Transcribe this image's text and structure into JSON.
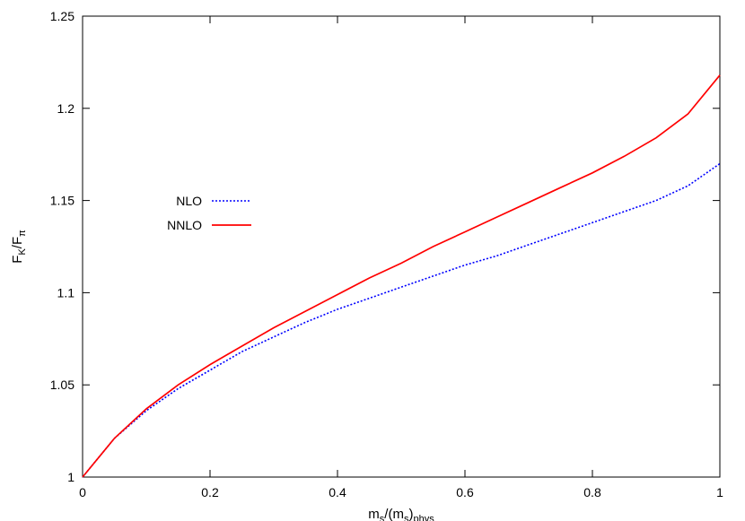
{
  "chart_data": {
    "type": "line",
    "xlabel": {
      "base": "m",
      "sub1": "s",
      "mid": "/(m",
      "sub2": "s",
      "end": ")",
      "sub3": "phys"
    },
    "ylabel": {
      "base": "F",
      "sub1": "K",
      "mid": "/F",
      "sub2": "π"
    },
    "xlim": [
      0,
      1
    ],
    "ylim": [
      1,
      1.25
    ],
    "xticks": [
      0,
      0.2,
      0.4,
      0.6,
      0.8,
      1
    ],
    "xtick_labels": [
      "0",
      "0.2",
      "0.4",
      "0.6",
      "0.8",
      "1"
    ],
    "yticks": [
      1,
      1.05,
      1.1,
      1.15,
      1.2,
      1.25
    ],
    "ytick_labels": [
      "1",
      "1.05",
      "1.1",
      "1.15",
      "1.2",
      "1.25"
    ],
    "grid": false,
    "legend_position": "middle-left",
    "series": [
      {
        "name": "NLO",
        "color": "#0000ff",
        "style": "dotted",
        "x": [
          0,
          0.05,
          0.1,
          0.15,
          0.2,
          0.25,
          0.3,
          0.35,
          0.4,
          0.45,
          0.5,
          0.55,
          0.6,
          0.65,
          0.7,
          0.75,
          0.8,
          0.85,
          0.9,
          0.95,
          1.0
        ],
        "values": [
          1.0,
          1.021,
          1.036,
          1.048,
          1.058,
          1.068,
          1.076,
          1.084,
          1.091,
          1.097,
          1.103,
          1.109,
          1.115,
          1.12,
          1.126,
          1.132,
          1.138,
          1.144,
          1.15,
          1.158,
          1.17
        ]
      },
      {
        "name": "NNLO",
        "color": "#ff0000",
        "style": "solid",
        "x": [
          0,
          0.05,
          0.1,
          0.15,
          0.2,
          0.25,
          0.3,
          0.35,
          0.4,
          0.45,
          0.5,
          0.55,
          0.6,
          0.65,
          0.7,
          0.75,
          0.8,
          0.85,
          0.9,
          0.95,
          1.0
        ],
        "values": [
          1.0,
          1.021,
          1.037,
          1.05,
          1.061,
          1.071,
          1.081,
          1.09,
          1.099,
          1.108,
          1.116,
          1.125,
          1.133,
          1.141,
          1.149,
          1.157,
          1.165,
          1.174,
          1.184,
          1.197,
          1.218
        ]
      }
    ]
  }
}
